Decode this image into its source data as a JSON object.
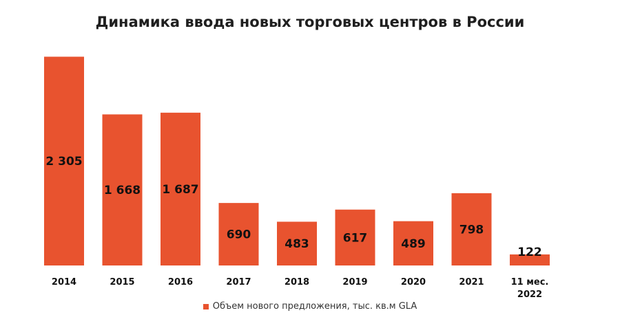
{
  "chart_data": {
    "type": "bar",
    "title": "Динамика ввода новых торговых центров в России",
    "categories": [
      [
        "2014"
      ],
      [
        "2015"
      ],
      [
        "2016"
      ],
      [
        "2017"
      ],
      [
        "2018"
      ],
      [
        "2019"
      ],
      [
        "2020"
      ],
      [
        "2021"
      ],
      [
        "11 мес.",
        "2022"
      ]
    ],
    "series": [
      {
        "name": "Объем нового предложения, тыс. кв.м GLA",
        "values": [
          2305,
          1668,
          1687,
          690,
          483,
          617,
          489,
          798,
          122
        ],
        "value_labels": [
          "2 305",
          "1 668",
          "1 687",
          "690",
          "483",
          "617",
          "489",
          "798",
          "122"
        ],
        "color": "#e8532f"
      }
    ],
    "ylim": [
      0,
      2400
    ],
    "grid": false,
    "legend": "bottom"
  }
}
